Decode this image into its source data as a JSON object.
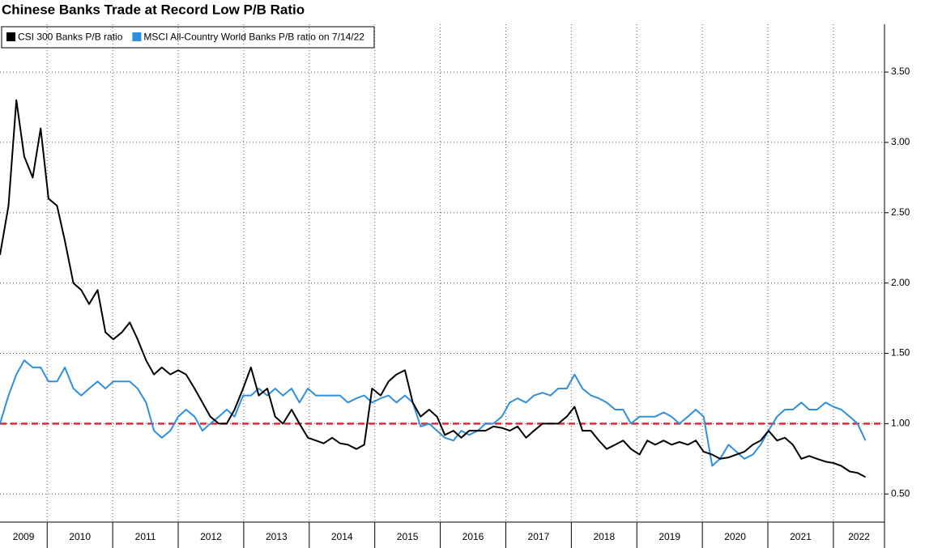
{
  "chart_data": {
    "type": "line",
    "title": "Chinese Banks Trade at Record Low P/B Ratio",
    "x": [
      2009.28,
      2009.41,
      2009.53,
      2009.65,
      2009.78,
      2009.9,
      2010.02,
      2010.15,
      2010.27,
      2010.4,
      2010.52,
      2010.64,
      2010.77,
      2010.89,
      2011.01,
      2011.14,
      2011.26,
      2011.38,
      2011.51,
      2011.63,
      2011.75,
      2011.88,
      2012.0,
      2012.12,
      2012.25,
      2012.37,
      2012.49,
      2012.62,
      2012.74,
      2012.86,
      2012.99,
      2013.11,
      2013.23,
      2013.36,
      2013.48,
      2013.6,
      2013.73,
      2013.85,
      2013.98,
      2014.1,
      2014.22,
      2014.35,
      2014.47,
      2014.59,
      2014.72,
      2014.84,
      2014.96,
      2015.09,
      2015.21,
      2015.33,
      2015.46,
      2015.58,
      2015.7,
      2015.83,
      2015.95,
      2016.07,
      2016.2,
      2016.32,
      2016.44,
      2016.57,
      2016.69,
      2016.81,
      2016.94,
      2017.06,
      2017.18,
      2017.31,
      2017.43,
      2017.56,
      2017.68,
      2017.8,
      2017.93,
      2018.05,
      2018.17,
      2018.3,
      2018.42,
      2018.54,
      2018.67,
      2018.79,
      2018.91,
      2019.04,
      2019.16,
      2019.28,
      2019.41,
      2019.53,
      2019.65,
      2019.78,
      2019.9,
      2020.02,
      2020.15,
      2020.27,
      2020.4,
      2020.52,
      2020.64,
      2020.77,
      2020.89,
      2021.01,
      2021.14,
      2021.26,
      2021.38,
      2021.51,
      2021.63,
      2021.75,
      2021.88,
      2022.0,
      2022.12,
      2022.25,
      2022.37,
      2022.49
    ],
    "series": [
      {
        "name": "CSI 300 Banks P/B ratio",
        "color": "#000000",
        "values": [
          2.2,
          2.55,
          3.3,
          2.9,
          2.75,
          3.1,
          2.6,
          2.55,
          2.3,
          2.0,
          1.95,
          1.85,
          1.95,
          1.65,
          1.6,
          1.65,
          1.72,
          1.6,
          1.45,
          1.35,
          1.4,
          1.35,
          1.38,
          1.35,
          1.25,
          1.15,
          1.05,
          1.0,
          1.0,
          1.1,
          1.25,
          1.4,
          1.2,
          1.25,
          1.05,
          1.0,
          1.1,
          1.0,
          0.9,
          0.88,
          0.86,
          0.9,
          0.86,
          0.85,
          0.82,
          0.85,
          1.25,
          1.2,
          1.3,
          1.35,
          1.38,
          1.15,
          1.05,
          1.1,
          1.05,
          0.92,
          0.95,
          0.9,
          0.95,
          0.95,
          0.95,
          0.98,
          0.97,
          0.95,
          0.98,
          0.9,
          0.95,
          1.0,
          1.0,
          1.0,
          1.05,
          1.12,
          0.95,
          0.95,
          0.88,
          0.82,
          0.85,
          0.88,
          0.82,
          0.78,
          0.88,
          0.85,
          0.88,
          0.85,
          0.87,
          0.85,
          0.88,
          0.8,
          0.78,
          0.75,
          0.76,
          0.78,
          0.8,
          0.85,
          0.88,
          0.95,
          0.88,
          0.9,
          0.85,
          0.75,
          0.77,
          0.75,
          0.73,
          0.72,
          0.7,
          0.66,
          0.65,
          0.62
        ]
      },
      {
        "name": "MSCI All-Country World Banks P/B ratio on 7/14/22",
        "color": "#2f8fdd",
        "values": [
          1.0,
          1.2,
          1.35,
          1.45,
          1.4,
          1.4,
          1.3,
          1.3,
          1.4,
          1.25,
          1.2,
          1.25,
          1.3,
          1.25,
          1.3,
          1.3,
          1.3,
          1.25,
          1.15,
          0.95,
          0.9,
          0.95,
          1.05,
          1.1,
          1.05,
          0.95,
          1.0,
          1.05,
          1.1,
          1.05,
          1.2,
          1.2,
          1.25,
          1.2,
          1.25,
          1.2,
          1.25,
          1.15,
          1.25,
          1.2,
          1.2,
          1.2,
          1.2,
          1.15,
          1.18,
          1.2,
          1.15,
          1.18,
          1.2,
          1.15,
          1.2,
          1.15,
          0.98,
          1.0,
          0.95,
          0.9,
          0.88,
          0.95,
          0.92,
          0.95,
          1.0,
          1.0,
          1.05,
          1.15,
          1.18,
          1.15,
          1.2,
          1.22,
          1.2,
          1.25,
          1.25,
          1.35,
          1.25,
          1.2,
          1.18,
          1.15,
          1.1,
          1.1,
          1.0,
          1.05,
          1.05,
          1.05,
          1.08,
          1.05,
          1.0,
          1.05,
          1.1,
          1.05,
          0.7,
          0.75,
          0.85,
          0.8,
          0.75,
          0.78,
          0.85,
          0.95,
          1.05,
          1.1,
          1.1,
          1.15,
          1.1,
          1.1,
          1.15,
          1.12,
          1.1,
          1.05,
          1.0,
          0.88
        ]
      }
    ],
    "xlim": [
      2009.28,
      2022.78
    ],
    "xticks": [
      2009,
      2010,
      2011,
      2012,
      2013,
      2014,
      2015,
      2016,
      2017,
      2018,
      2019,
      2020,
      2021,
      2022
    ],
    "ylim": [
      0.3,
      3.84
    ],
    "yticks": [
      {
        "value": 0.5,
        "label": "0.50"
      },
      {
        "value": 1,
        "label": "1.00"
      },
      {
        "value": 1.5,
        "label": "1.50"
      },
      {
        "value": 2,
        "label": "2.00"
      },
      {
        "value": 2.5,
        "label": "2.50"
      },
      {
        "value": 3,
        "label": "3.00"
      },
      {
        "value": 3.5,
        "label": "3.50"
      }
    ],
    "reference_line": {
      "value": 1,
      "color": "#d62d3b"
    },
    "grid": true,
    "legend": "upper left"
  }
}
